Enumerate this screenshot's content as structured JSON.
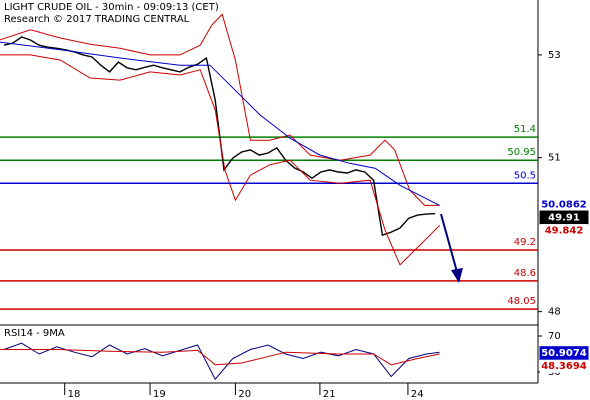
{
  "chart_data": [
    {
      "type": "line",
      "title": "LIGHT CRUDE OIL - 30min - 09:09:13 (CET)",
      "subtitle": "Research © 2017 TRADING CENTRAL",
      "xlim": [
        -0.45,
        60.68
      ],
      "ylim": [
        47.74,
        54.07
      ],
      "yticks": [
        53,
        51,
        48
      ],
      "series": [
        {
          "color": "#000000",
          "x": [
            0,
            1,
            2,
            3,
            4,
            5,
            6,
            7,
            8,
            9,
            10,
            11,
            12,
            13,
            14,
            15,
            16,
            17,
            18,
            19,
            20,
            21,
            22,
            23,
            24,
            25,
            26,
            27,
            28,
            29,
            30,
            31,
            32,
            33,
            34,
            35,
            36,
            37,
            38,
            39,
            40,
            41,
            42,
            43,
            44,
            45,
            46,
            47,
            48,
            49
          ],
          "values": [
            53.19,
            53.23,
            53.35,
            53.29,
            53.19,
            53.15,
            53.13,
            53.1,
            53.06,
            53.0,
            52.96,
            52.8,
            52.67,
            52.86,
            52.75,
            52.71,
            52.76,
            52.8,
            52.75,
            52.71,
            52.67,
            52.76,
            52.82,
            52.94,
            52.12,
            50.76,
            50.99,
            51.11,
            51.15,
            51.05,
            51.09,
            51.19,
            50.95,
            50.8,
            50.72,
            50.6,
            50.72,
            50.76,
            50.72,
            50.7,
            50.76,
            50.72,
            50.56,
            49.49,
            49.55,
            49.63,
            49.82,
            49.88,
            49.9,
            49.91
          ]
        },
        {
          "color": "#cc0000",
          "x": [
            -0.5,
            3.0,
            6.4,
            9.8,
            13.2,
            16.6,
            20.0,
            22.3,
            23.6,
            24.8,
            26.3,
            28.0,
            30.2,
            32.5,
            34.8,
            38.2,
            41.6,
            43.3,
            44.4,
            46.1,
            47.8,
            49.5
          ],
          "values": [
            53.29,
            53.49,
            53.33,
            53.21,
            53.13,
            53.0,
            53.0,
            53.19,
            53.58,
            53.79,
            52.9,
            51.34,
            51.34,
            51.44,
            51.05,
            50.95,
            51.05,
            51.34,
            51.15,
            50.37,
            50.07,
            50.07
          ]
        },
        {
          "color": "#cc0000",
          "x": [
            -0.5,
            3.0,
            6.4,
            9.8,
            13.2,
            16.6,
            20.0,
            22.3,
            24.0,
            25.1,
            26.3,
            28.0,
            30.2,
            32.5,
            34.8,
            38.2,
            41.6,
            43.3,
            45.0,
            46.7,
            48.4,
            49.5
          ],
          "values": [
            53.0,
            53.0,
            52.9,
            52.55,
            52.51,
            52.67,
            52.61,
            52.71,
            51.93,
            50.76,
            50.17,
            50.66,
            50.86,
            50.95,
            50.56,
            50.5,
            50.56,
            49.59,
            48.91,
            49.2,
            49.49,
            49.68
          ]
        },
        {
          "color": "#0000cc",
          "x": [
            -0.5,
            6.4,
            13.2,
            20.0,
            23.4,
            25.7,
            29.1,
            32.5,
            35.9,
            39.3,
            42.2,
            45.0,
            49.5
          ],
          "values": [
            53.25,
            53.1,
            52.94,
            52.8,
            52.8,
            52.41,
            51.83,
            51.38,
            51.05,
            50.89,
            50.79,
            50.46,
            50.07
          ]
        }
      ],
      "levels": {
        "values": [
          51.4,
          50.95,
          50.5,
          49.2,
          48.6,
          48.05
        ],
        "colors": [
          "#008000",
          "#008000",
          "#0000cc",
          "#cc0000",
          "#cc0000",
          "#cc0000"
        ]
      },
      "tags": [
        {
          "value": 50.0862,
          "color": "#0000cc",
          "background": "#ffffff"
        },
        {
          "value": 49.91,
          "color": "#ffffff",
          "background": "#000000"
        },
        {
          "value": 49.842,
          "color": "#cc0000",
          "background": "#ffffff"
        }
      ]
    },
    {
      "type": "line",
      "title": "RSI14 - 9MA",
      "xlim": [
        -0.45,
        60.68
      ],
      "ylim": [
        17.8,
        78.9
      ],
      "yticks": [
        70,
        30
      ],
      "xticks": [
        {
          "value": 6.9,
          "label": "18"
        },
        {
          "value": 16.6,
          "label": "19"
        },
        {
          "value": 26.3,
          "label": "20"
        },
        {
          "value": 35.9,
          "label": "21"
        },
        {
          "value": 45.9,
          "label": "24"
        }
      ],
      "series": [
        {
          "color": "#000080",
          "x": [
            0,
            2,
            4,
            6,
            8,
            10,
            12,
            14,
            16,
            18,
            20,
            22,
            24,
            26,
            28,
            30,
            32,
            34,
            36,
            38,
            40,
            42,
            44,
            46,
            48,
            49.5
          ],
          "values": [
            55,
            62,
            50,
            58,
            52,
            47,
            60,
            50,
            56,
            48,
            54,
            60,
            22,
            45,
            55,
            60,
            50,
            45,
            52,
            48,
            55,
            50,
            25,
            45,
            50,
            52
          ]
        },
        {
          "color": "#cc0000",
          "x": [
            -0.5,
            6,
            12,
            18,
            22,
            24,
            27,
            32,
            38,
            42,
            44,
            47,
            49.5
          ],
          "values": [
            55,
            55,
            53,
            52,
            54,
            38,
            40,
            52,
            50,
            50,
            38,
            45,
            50
          ]
        }
      ],
      "tags": [
        {
          "value": 50.9074,
          "color": "#ffffff",
          "background": "#0000cc"
        },
        {
          "value": 48.3694,
          "color": "#cc0000",
          "background": "#ffffff"
        }
      ]
    }
  ]
}
